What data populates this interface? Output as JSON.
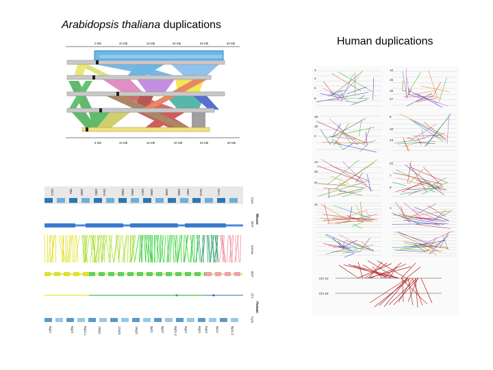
{
  "titles": {
    "arabidopsis_species": "Arabidopsis thaliana",
    "arabidopsis_suffix": " duplications",
    "human": "Human duplications"
  },
  "arabidopsis_panel": {
    "top_ticks": [
      "0 Mb",
      "10 Mb",
      "15 Mb",
      "20 Mb",
      "25 Mb",
      "30 Mb"
    ],
    "bottom_ticks": [
      "5 Mb",
      "10 Mb",
      "15 Mb",
      "20 Mb",
      "25 Mb",
      "30 Mb"
    ]
  },
  "mouse_human_panel": {
    "top_labels": [
      "16C1",
      "7B3",
      "16B2",
      "10B1",
      "10A3",
      "10B3",
      "10B4",
      "10C1",
      "10B5",
      "16B5",
      "10B6",
      "10B7",
      "16A3",
      "15A1"
    ],
    "bottom_labels": [
      "8q22",
      "8q23",
      "8q24.1",
      "18q11",
      "12q15",
      "18q21",
      "8p21",
      "8p22",
      "8q21.3",
      "8q22",
      "8q23",
      "8q24",
      "8p12",
      "8p11.2"
    ],
    "row_labels": [
      "Cyto",
      "BCF",
      "Genes",
      "BCF",
      "Chr",
      "Cyto"
    ],
    "group_labels": [
      "Mouse",
      "Human"
    ]
  },
  "human_panel": {
    "scatter_labels": [
      "3",
      "4",
      "5",
      "6",
      "12",
      "15",
      "16",
      "17",
      "18",
      "19",
      "2",
      "8",
      "10",
      "13",
      "14",
      "20",
      "21",
      "22",
      "7",
      "9",
      "11",
      "1"
    ],
    "bottom_chr_labels": [
      "Chr 10",
      "Chr 20"
    ]
  }
}
